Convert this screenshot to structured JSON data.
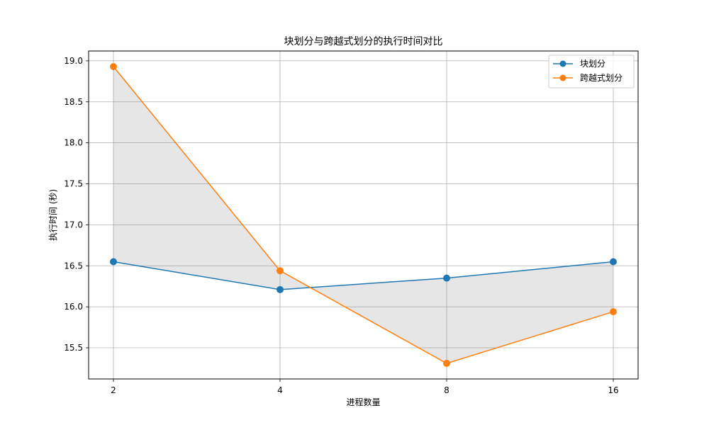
{
  "chart_data": {
    "type": "line",
    "title": "块划分与跨越式划分的执行时间对比",
    "xlabel": "进程数量",
    "ylabel": "执行时间 (秒)",
    "x_categories": [
      "2",
      "4",
      "8",
      "16"
    ],
    "ylim": [
      15.12,
      19.12
    ],
    "yticks": [
      15.5,
      16.0,
      16.5,
      17.0,
      17.5,
      18.0,
      18.5,
      19.0
    ],
    "ytick_labels": [
      "15.5",
      "16.0",
      "16.5",
      "17.0",
      "17.5",
      "18.0",
      "18.5",
      "19.0"
    ],
    "grid": true,
    "legend_position": "upper right",
    "fill_between": {
      "color": "#808080",
      "opacity": 0.2
    },
    "series": [
      {
        "name": "块划分",
        "color": "#1f77b4",
        "values": [
          16.55,
          16.21,
          16.35,
          16.55
        ]
      },
      {
        "name": "跨越式划分",
        "color": "#ff7f0e",
        "values": [
          18.93,
          16.44,
          15.31,
          15.94
        ]
      }
    ]
  }
}
